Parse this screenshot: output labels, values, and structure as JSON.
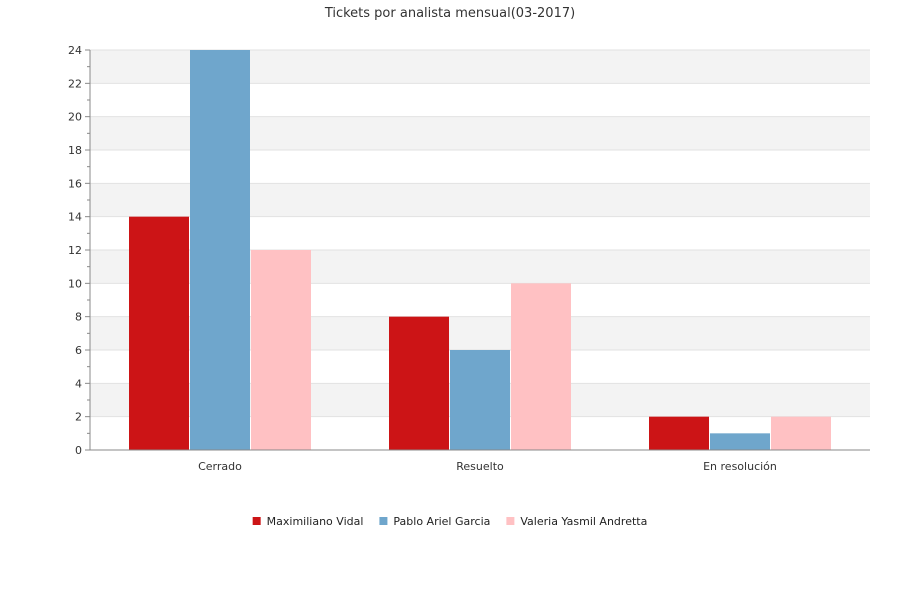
{
  "chart_data": {
    "type": "bar",
    "title": "Tickets por analista mensual(03-2017)",
    "xlabel": "",
    "ylabel": "",
    "ylim": [
      0,
      24
    ],
    "y_ticks": [
      "0",
      "2",
      "4",
      "6",
      "8",
      "10",
      "12",
      "14",
      "16",
      "18",
      "20",
      "22",
      "24"
    ],
    "categories": [
      "Cerrado",
      "Resuelto",
      "En resolución"
    ],
    "series": [
      {
        "name": "Maximiliano Vidal",
        "color": "#cc1416",
        "values": [
          14,
          8,
          2
        ]
      },
      {
        "name": "Pablo Ariel Garcia",
        "color": "#6fa6cc",
        "values": [
          24,
          6,
          1
        ]
      },
      {
        "name": "Valeria Yasmil Andretta",
        "color": "#ffc1c3",
        "values": [
          12,
          10,
          2
        ]
      }
    ],
    "grid": true,
    "legend_position": "bottom"
  }
}
